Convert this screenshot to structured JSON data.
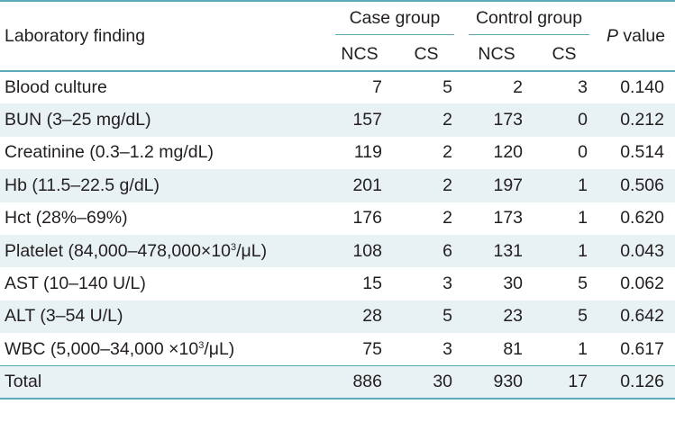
{
  "header": {
    "finding": "Laboratory finding",
    "case_group": "Case group",
    "control_group": "Control group",
    "p_italic": "P",
    "p_rest": " value",
    "ncs": "NCS",
    "cs": "CS"
  },
  "rows": [
    {
      "pre": "Blood culture",
      "sup": "",
      "post": "",
      "case_ncs": "7",
      "case_cs": "5",
      "ctrl_ncs": "2",
      "ctrl_cs": "3",
      "p": "0.140"
    },
    {
      "pre": "BUN (3–25 mg/dL)",
      "sup": "",
      "post": "",
      "case_ncs": "157",
      "case_cs": "2",
      "ctrl_ncs": "173",
      "ctrl_cs": "0",
      "p": "0.212"
    },
    {
      "pre": "Creatinine (0.3–1.2 mg/dL)",
      "sup": "",
      "post": "",
      "case_ncs": "119",
      "case_cs": "2",
      "ctrl_ncs": "120",
      "ctrl_cs": "0",
      "p": "0.514"
    },
    {
      "pre": "Hb (11.5–22.5 g/dL)",
      "sup": "",
      "post": "",
      "case_ncs": "201",
      "case_cs": "2",
      "ctrl_ncs": "197",
      "ctrl_cs": "1",
      "p": "0.506"
    },
    {
      "pre": "Hct (28%–69%)",
      "sup": "",
      "post": "",
      "case_ncs": "176",
      "case_cs": "2",
      "ctrl_ncs": "173",
      "ctrl_cs": "1",
      "p": "0.620"
    },
    {
      "pre": "Platelet (84,000–478,000×10",
      "sup": "3",
      "post": "/μL)",
      "case_ncs": "108",
      "case_cs": "6",
      "ctrl_ncs": "131",
      "ctrl_cs": "1",
      "p": "0.043"
    },
    {
      "pre": "AST (10–140 U/L)",
      "sup": "",
      "post": "",
      "case_ncs": "15",
      "case_cs": "3",
      "ctrl_ncs": "30",
      "ctrl_cs": "5",
      "p": "0.062"
    },
    {
      "pre": "ALT (3–54 U/L)",
      "sup": "",
      "post": "",
      "case_ncs": "28",
      "case_cs": "5",
      "ctrl_ncs": "23",
      "ctrl_cs": "5",
      "p": "0.642"
    },
    {
      "pre": "WBC (5,000–34,000 ×10",
      "sup": "3",
      "post": "/μL)",
      "case_ncs": "75",
      "case_cs": "3",
      "ctrl_ncs": "81",
      "ctrl_cs": "1",
      "p": "0.617"
    },
    {
      "pre": "Total",
      "sup": "",
      "post": "",
      "case_ncs": "886",
      "case_cs": "30",
      "ctrl_ncs": "930",
      "ctrl_cs": "17",
      "p": "0.126"
    }
  ]
}
